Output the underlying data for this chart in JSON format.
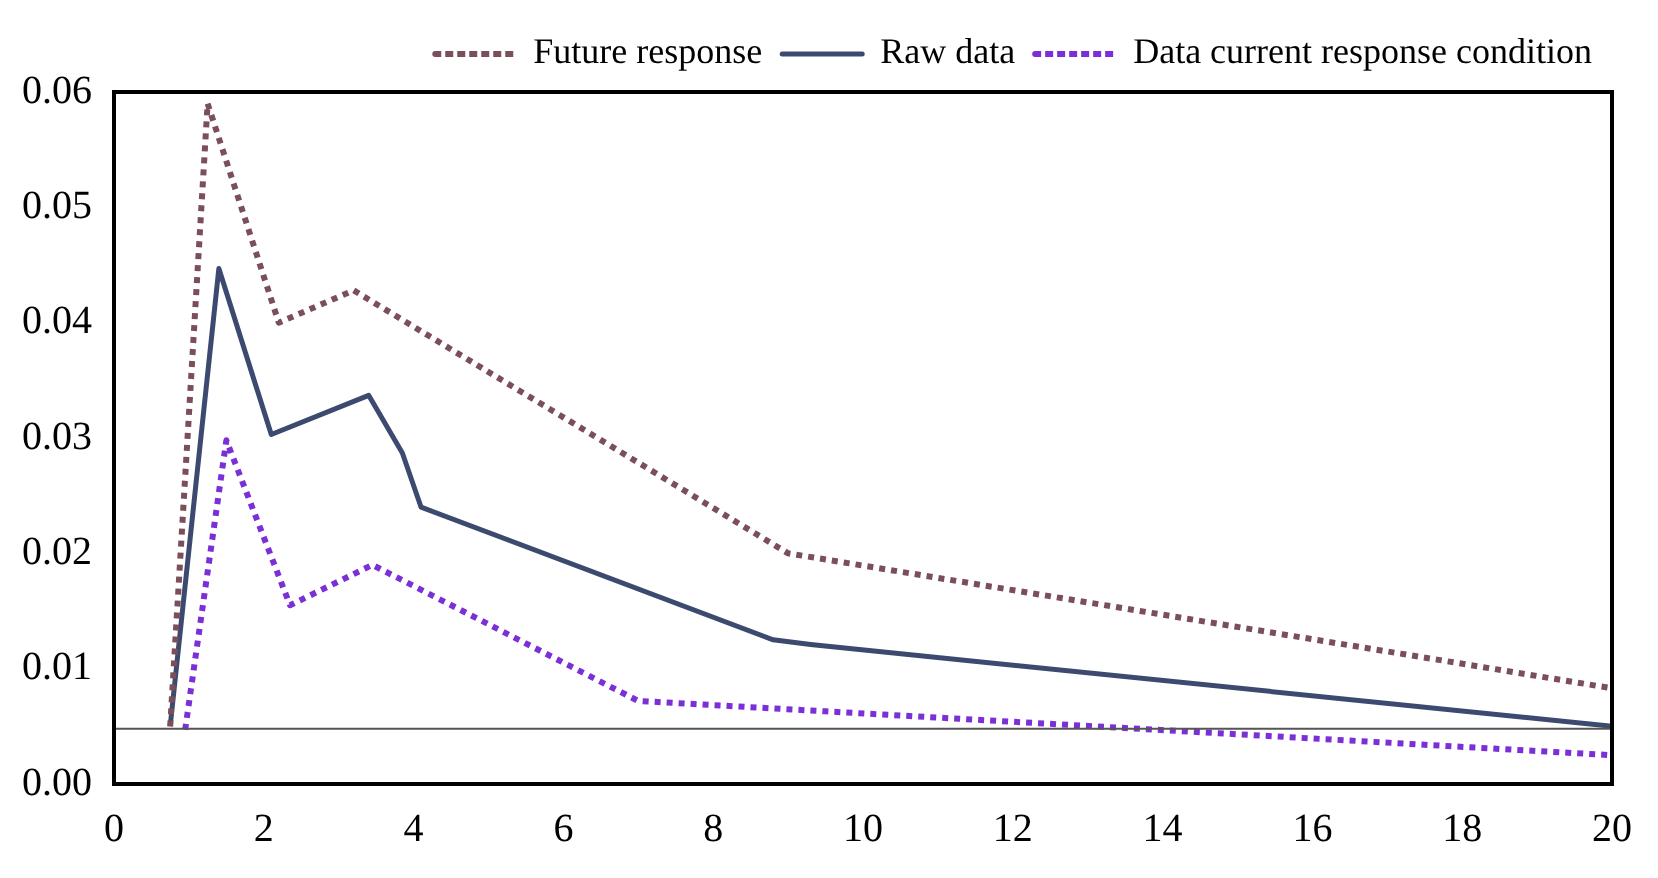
{
  "chart_data": {
    "type": "line",
    "series": [
      {
        "name": "Future response",
        "color": "#7a4f5a",
        "line_style": "dotted",
        "x": [
          0.75,
          1.25,
          2.2,
          3.2,
          9.0,
          20
        ],
        "values": [
          0.005,
          0.059,
          0.04,
          0.0428,
          0.02,
          0.0083
        ]
      },
      {
        "name": "Raw data",
        "color": "#3b4a6e",
        "line_style": "solid",
        "x": [
          0.75,
          1.4,
          2.1,
          3.4,
          3.85,
          4.1,
          8.8,
          9.3,
          20
        ],
        "values": [
          0.005,
          0.0447,
          0.0303,
          0.0337,
          0.0287,
          0.024,
          0.0125,
          0.0121,
          0.005
        ]
      },
      {
        "name": "Data current response condition",
        "color": "#7b2fd6",
        "line_style": "dotted",
        "x": [
          0.95,
          1.5,
          2.35,
          3.45,
          7.0,
          9.5,
          20
        ],
        "values": [
          0.0047,
          0.0298,
          0.0155,
          0.019,
          0.0072,
          0.0063,
          0.0025
        ]
      }
    ],
    "xlim": [
      0,
      20
    ],
    "xticks": [
      0,
      2,
      4,
      6,
      8,
      10,
      12,
      14,
      16,
      18,
      20
    ],
    "ylim": [
      0,
      0.06
    ],
    "yticks": [
      {
        "value": 0,
        "label": "0.00"
      },
      {
        "value": 0.01,
        "label": "0.01"
      },
      {
        "value": 0.02,
        "label": "0.02"
      },
      {
        "value": 0.03,
        "label": "0.03"
      },
      {
        "value": 0.04,
        "label": "0.04"
      },
      {
        "value": 0.05,
        "label": "0.05"
      },
      {
        "value": 0.06,
        "label": "0.06"
      }
    ],
    "ref_lines": [
      {
        "axis": "y",
        "value": 0.0048,
        "color": "#555555"
      }
    ],
    "grid": false,
    "legend": "top right",
    "marker": "none"
  }
}
